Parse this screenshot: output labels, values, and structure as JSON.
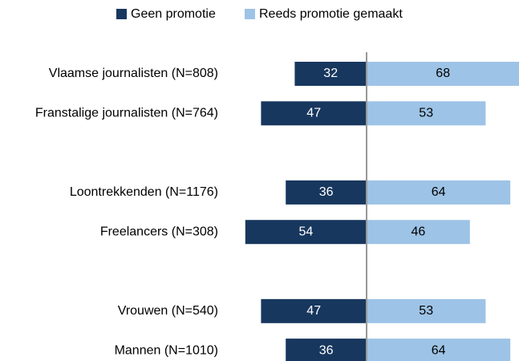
{
  "chart_data": {
    "type": "diverging-bar",
    "categories": [
      "Vlaamse journalisten (N=808)",
      "Franstalige journalisten (N=764)",
      null,
      "Loontrekkenden (N=1176)",
      "Freelancers (N=308)",
      null,
      "Vrouwen (N=540)",
      "Mannen (N=1010)"
    ],
    "series": [
      {
        "name": "Geen promotie",
        "color": "#17375e",
        "values": [
          32,
          47,
          null,
          36,
          54,
          null,
          47,
          36
        ]
      },
      {
        "name": "Reeds promotie gemaakt",
        "color": "#9dc3e6",
        "values": [
          68,
          53,
          null,
          64,
          46,
          null,
          53,
          64
        ]
      }
    ]
  }
}
